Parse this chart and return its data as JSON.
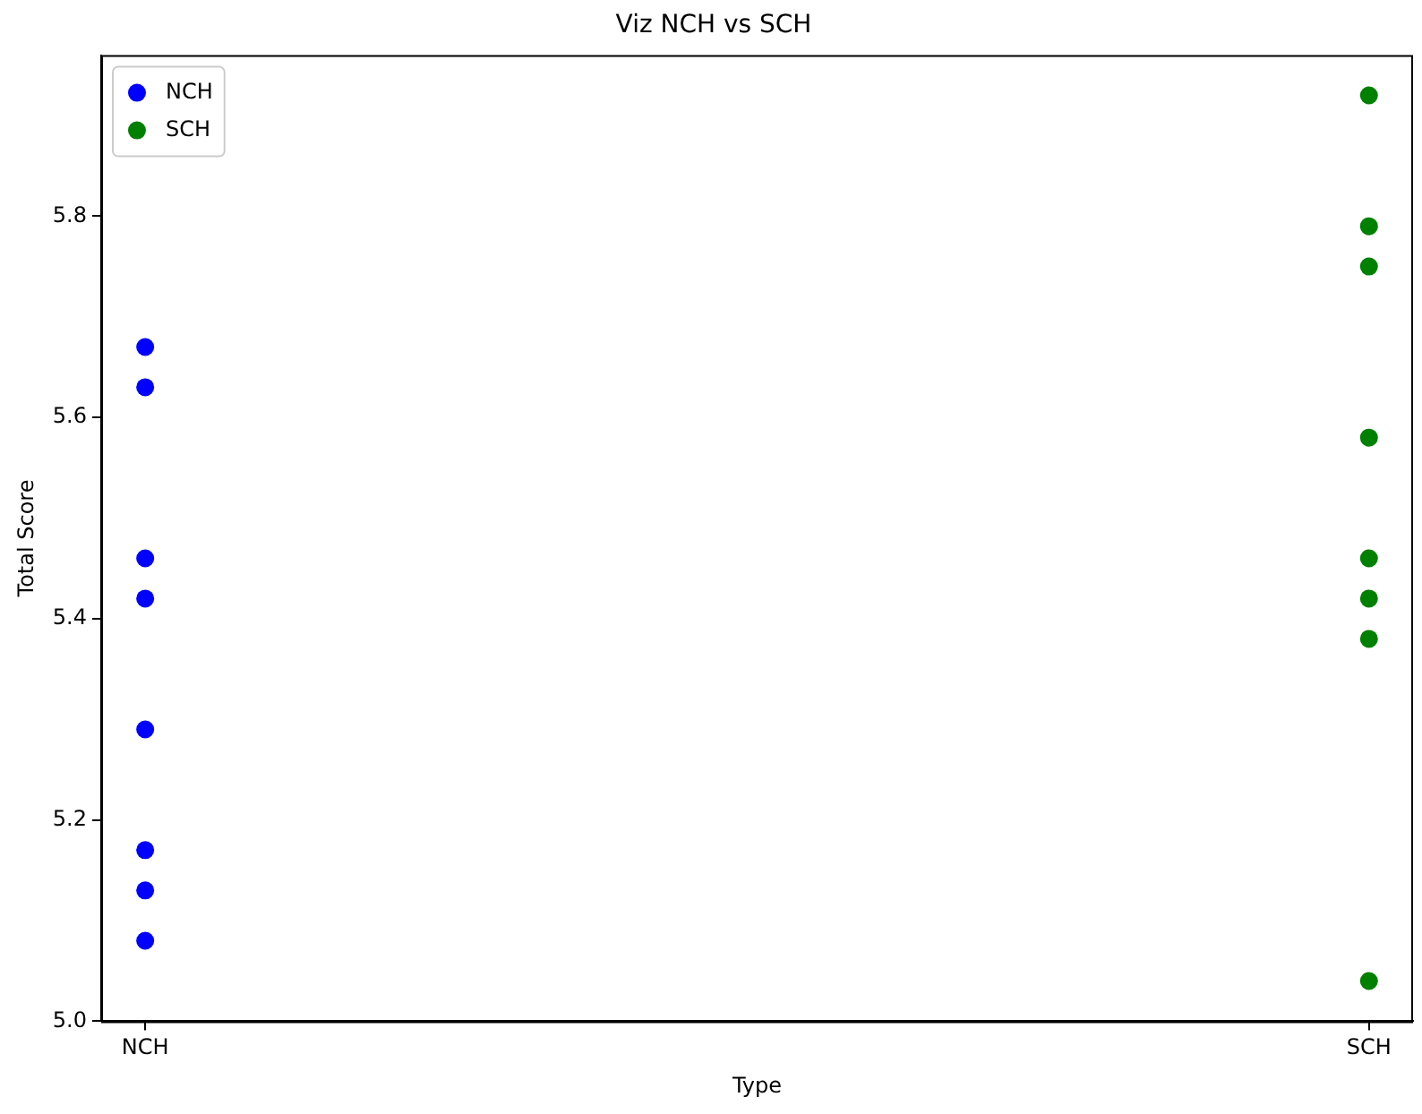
{
  "chart_data": {
    "type": "scatter",
    "title": "Viz NCH vs SCH",
    "xlabel": "Type",
    "ylabel": "Total Score",
    "categories": [
      "NCH",
      "SCH"
    ],
    "series": [
      {
        "name": "NCH",
        "color": "#0000ff",
        "x": [
          "NCH",
          "NCH",
          "NCH",
          "NCH",
          "NCH",
          "NCH",
          "NCH",
          "NCH"
        ],
        "values": [
          5.67,
          5.63,
          5.46,
          5.42,
          5.29,
          5.17,
          5.13,
          5.08
        ]
      },
      {
        "name": "SCH",
        "color": "#008000",
        "x": [
          "SCH",
          "SCH",
          "SCH",
          "SCH",
          "SCH",
          "SCH",
          "SCH",
          "SCH"
        ],
        "values": [
          5.92,
          5.79,
          5.75,
          5.58,
          5.46,
          5.42,
          5.38,
          5.04
        ]
      }
    ],
    "ylim": [
      5.0,
      5.96
    ],
    "yticks": [
      {
        "value": 5.0,
        "label": "5.0"
      },
      {
        "value": 5.2,
        "label": "5.2"
      },
      {
        "value": 5.4,
        "label": "5.4"
      },
      {
        "value": 5.6,
        "label": "5.6"
      },
      {
        "value": 5.8,
        "label": "5.8"
      }
    ],
    "grid": false,
    "legend": "top left",
    "marker": "circle"
  }
}
